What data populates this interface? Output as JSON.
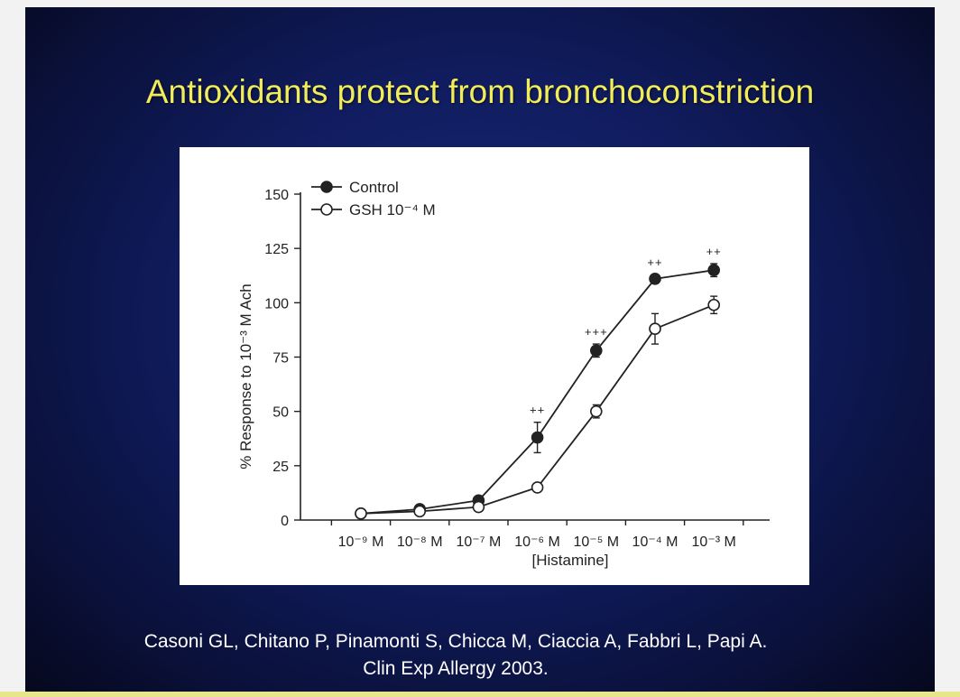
{
  "slide": {
    "title": "Antioxidants protect from bronchoconstriction",
    "citation_line1": "Casoni GL, Chitano P, Pinamonti S, Chicca M, Ciaccia A, Fabbri L, Papi A.",
    "citation_line2": "Clin Exp Allergy 2003."
  },
  "colors": {
    "title": "#f0ec5a",
    "background": "#101c5e",
    "panel": "#ffffff",
    "ink": "#222222"
  },
  "chart_data": {
    "type": "line",
    "title": "",
    "xlabel": "[Histamine]",
    "ylabel": "% Response to 10⁻³ M Ach",
    "categories": [
      "10⁻⁹ M",
      "10⁻⁸ M",
      "10⁻⁷ M",
      "10⁻⁶ M",
      "10⁻⁵ M",
      "10⁻⁴ M",
      "10⁻³ M"
    ],
    "ylim": [
      0,
      150
    ],
    "yticks": [
      0,
      25,
      50,
      75,
      100,
      125,
      150
    ],
    "grid": false,
    "legend_position": "top-left",
    "series": [
      {
        "name": "Control",
        "marker": "filled-circle",
        "values": [
          3,
          5,
          9,
          38,
          78,
          111,
          115
        ],
        "errors": [
          0,
          0,
          0,
          7,
          3,
          2,
          3
        ],
        "annotations": [
          "",
          "",
          "",
          "++",
          "+++",
          "++",
          "++"
        ]
      },
      {
        "name": "GSH 10⁻⁴ M",
        "marker": "open-circle",
        "values": [
          3,
          4,
          6,
          15,
          50,
          88,
          99
        ],
        "errors": [
          0,
          0,
          0,
          0,
          3,
          7,
          4
        ],
        "annotations": [
          "",
          "",
          "",
          "",
          "",
          "",
          ""
        ]
      }
    ]
  }
}
